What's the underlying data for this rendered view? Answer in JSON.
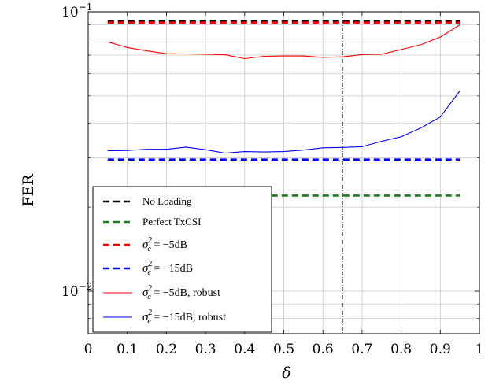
{
  "chart_data": {
    "type": "line",
    "xlabel": "δ",
    "ylabel": "FER",
    "xlim": [
      0,
      1
    ],
    "ylim": [
      0.007,
      0.1
    ],
    "yscale": "log",
    "xticks": [
      0,
      0.1,
      0.2,
      0.3,
      0.4,
      0.5,
      0.6,
      0.7,
      0.8,
      0.9,
      1
    ],
    "xtick_labels": [
      "0",
      "0.1",
      "0.2",
      "0.3",
      "0.4",
      "0.5",
      "0.6",
      "0.7",
      "0.8",
      "0.9",
      "1"
    ],
    "ytick_labels": [
      {
        "base": "10",
        "exp": "−2",
        "value": 0.01
      },
      {
        "base": "10",
        "exp": "−1",
        "value": 0.1
      }
    ],
    "grid": true,
    "legend_position": "bottom-left",
    "vertical_marker": {
      "x": 0.65,
      "style": "dash-dot"
    },
    "series": [
      {
        "name": "No Loading",
        "legend_latex": "No Loading",
        "color": "#000000",
        "dashed": true,
        "x": [
          0.05,
          0.95
        ],
        "y": [
          0.0925,
          0.0925
        ]
      },
      {
        "name": "Perfect TxCSI",
        "legend_latex": "Perfect TxCSI",
        "color": "#1a7a1a",
        "dashed": true,
        "x": [
          0.05,
          0.95
        ],
        "y": [
          0.022,
          0.022
        ]
      },
      {
        "name": "σ_e^2 = −5dB",
        "legend_latex": "σe2 = −5dB",
        "color": "#ff0000",
        "dashed": true,
        "x": [
          0.05,
          0.95
        ],
        "y": [
          0.0915,
          0.0915
        ]
      },
      {
        "name": "σ_e^2 = −15dB",
        "legend_latex": "σe2 = −15dB",
        "color": "#0000ff",
        "dashed": true,
        "x": [
          0.05,
          0.95
        ],
        "y": [
          0.0296,
          0.0296
        ]
      },
      {
        "name": "σ_e^2 = −5dB, robust",
        "legend_latex": "σe2 = −5dB, robust",
        "color": "#ff0000",
        "dashed": false,
        "x": [
          0.05,
          0.1,
          0.15,
          0.2,
          0.25,
          0.3,
          0.35,
          0.4,
          0.45,
          0.5,
          0.55,
          0.6,
          0.65,
          0.7,
          0.75,
          0.8,
          0.85,
          0.9,
          0.95
        ],
        "y": [
          0.078,
          0.0745,
          0.0725,
          0.0708,
          0.0707,
          0.0705,
          0.0702,
          0.068,
          0.0693,
          0.0695,
          0.0695,
          0.0687,
          0.069,
          0.0703,
          0.0705,
          0.0733,
          0.0762,
          0.0812,
          0.0898
        ]
      },
      {
        "name": "σ_e^2 = −15dB, robust",
        "legend_latex": "σe2 = −15dB, robust",
        "color": "#0000ff",
        "dashed": false,
        "x": [
          0.05,
          0.1,
          0.15,
          0.2,
          0.25,
          0.3,
          0.35,
          0.4,
          0.45,
          0.5,
          0.55,
          0.6,
          0.65,
          0.7,
          0.75,
          0.8,
          0.85,
          0.9,
          0.95
        ],
        "y": [
          0.0318,
          0.0319,
          0.0322,
          0.0322,
          0.0328,
          0.0321,
          0.0312,
          0.0316,
          0.0315,
          0.0316,
          0.032,
          0.0326,
          0.0327,
          0.0329,
          0.0344,
          0.0357,
          0.0384,
          0.042,
          0.0521
        ]
      }
    ]
  }
}
